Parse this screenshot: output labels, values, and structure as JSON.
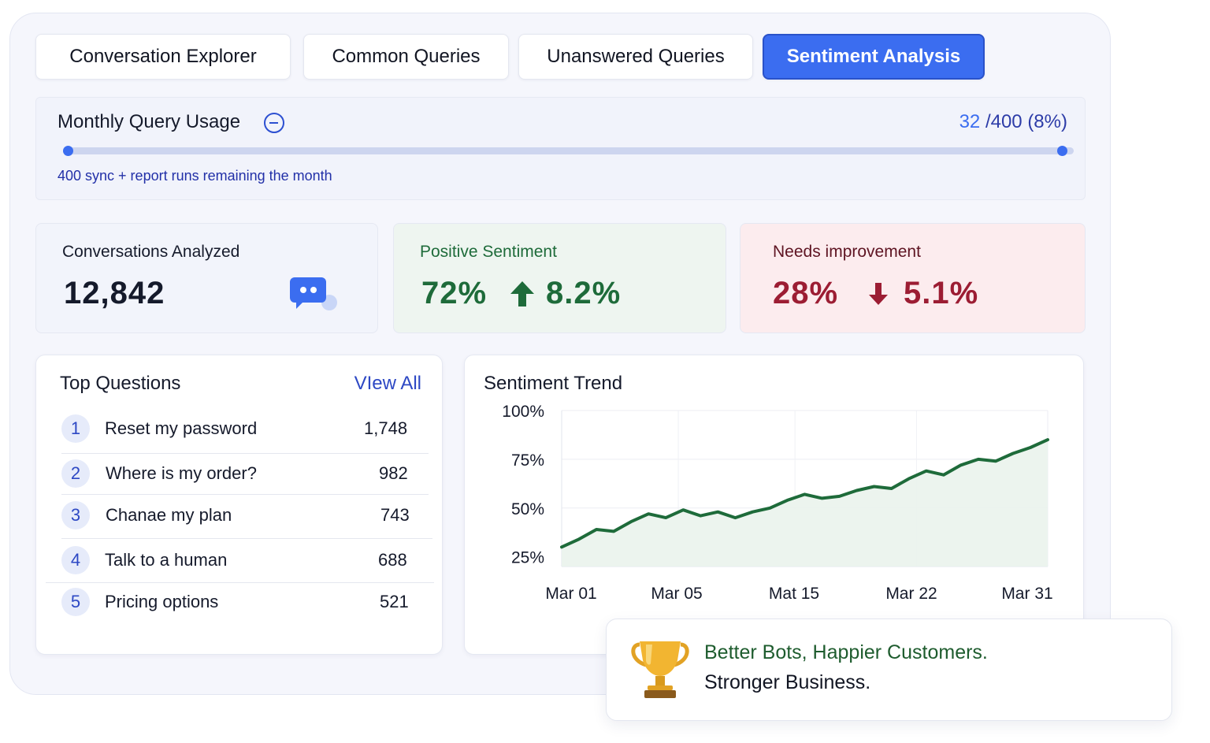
{
  "tabs": [
    {
      "label": "Conversation Explorer",
      "active": false
    },
    {
      "label": "Common Queries",
      "active": false
    },
    {
      "label": "Unanswered Queries",
      "active": false
    },
    {
      "label": "Sentiment Analysis",
      "active": true
    }
  ],
  "usage": {
    "title": "Monthly Query Usage",
    "used": "32",
    "total": "/400 (8%)",
    "progress_fraction": 0.08,
    "note": "400 sync + report runs remaining the month"
  },
  "stats": {
    "conversations": {
      "label": "Conversations Analyzed",
      "value": "12,842",
      "icon": "chat-bubble-icon"
    },
    "positive": {
      "label": "Positive Sentiment",
      "value": "72%",
      "change": "8.2%",
      "icon": "arrow-up-icon"
    },
    "negative": {
      "label": "Needs improvement",
      "value": "28%",
      "change": "5.1%",
      "icon": "arrow-down-icon"
    }
  },
  "top_questions": {
    "title": "Top Questions",
    "view_all": "VIew All",
    "items": [
      {
        "rank": "1",
        "label": "Reset my password",
        "count": "1,748"
      },
      {
        "rank": "2",
        "label": "Where is my order?",
        "count": "982"
      },
      {
        "rank": "3",
        "label": "Chanae my plan",
        "count": "743"
      },
      {
        "rank": "4",
        "label": "Talk to a human",
        "count": "688"
      },
      {
        "rank": "5",
        "label": "Pricing options",
        "count": "521"
      }
    ]
  },
  "sentiment_trend": {
    "title": "Sentiment Trend"
  },
  "chart_data": {
    "type": "area",
    "title": "Sentiment Trend",
    "x_ticks": [
      "Mar 01",
      "Mar 05",
      "Mat 15",
      "Mar 22",
      "Mar 31"
    ],
    "y_ticks": [
      "100%",
      "75%",
      "50%",
      "25%"
    ],
    "y_tick_values": [
      100,
      75,
      50,
      25
    ],
    "ylim": [
      20,
      100
    ],
    "x_index_range": [
      0,
      28
    ],
    "series": [
      {
        "color": "#1e6b3a",
        "x": [
          0,
          1,
          2,
          3,
          4,
          5,
          6,
          7,
          8,
          9,
          10,
          11,
          12,
          13,
          14,
          15,
          16,
          17,
          18,
          19,
          20,
          21,
          22,
          23,
          24,
          25,
          26,
          27,
          28
        ],
        "y": [
          30,
          34,
          39,
          38,
          43,
          47,
          45,
          49,
          46,
          48,
          45,
          48,
          50,
          54,
          57,
          55,
          56,
          59,
          61,
          60,
          65,
          69,
          67,
          72,
          75,
          74,
          78,
          81,
          85
        ]
      }
    ],
    "grid": true
  },
  "footer": {
    "line1": "Better Bots, Happier Customers.",
    "line2": "Stronger Business.",
    "icon": "trophy-icon"
  },
  "colors": {
    "accent": "#3b6df0",
    "positive": "#1e6b3a",
    "negative": "#9c1d33"
  }
}
